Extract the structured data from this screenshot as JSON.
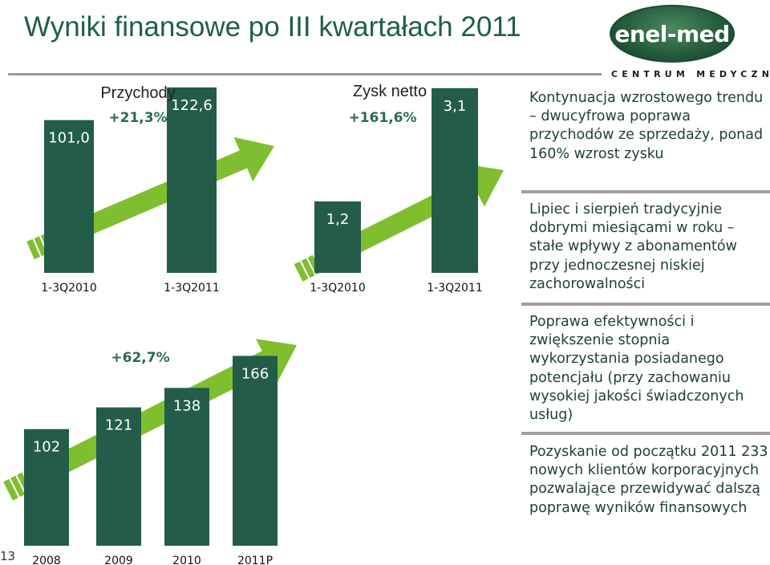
{
  "title": "Wyniki finansowe po III kwartałach 2011",
  "logo": {
    "name": "enel-med",
    "subtitle": "CENTRUM MEDYCZNE"
  },
  "colors": {
    "bar": "#245c4a",
    "arrow": "#7fbf2f",
    "accent": "#1e5e4a"
  },
  "page_number": "13",
  "bullets": [
    "Kontynuacja wzrostowego trendu – dwucyfrowa poprawa przychodów ze sprzedaży, ponad 160% wzrost zysku",
    "Lipiec i sierpień tradycyjnie dobrymi miesiącami w roku – stałe wpływy z abonamentów przy jednoczesnej niskiej zachorowalności",
    "Poprawa efektywności i zwiększenie stopnia wykorzystania posiadanego potencjału (przy zachowaniu wysokiej jakości świadczonych usług)",
    "Pozyskanie od początku 2011 233 nowych klientów korporacyjnych pozwalające przewidywać dalszą poprawę wyników finansowych"
  ],
  "chart_data": [
    {
      "type": "bar",
      "title": "Przychody",
      "growth_label": "+21,3%",
      "categories": [
        "1-3Q2010",
        "1-3Q2011"
      ],
      "values": [
        101.0,
        122.6
      ],
      "value_labels": [
        "101,0",
        "122,6"
      ],
      "ylim": [
        0,
        130
      ]
    },
    {
      "type": "bar",
      "title": "Zysk netto",
      "growth_label": "+161,6%",
      "categories": [
        "1-3Q2010",
        "1-3Q2011"
      ],
      "values": [
        1.2,
        3.1
      ],
      "value_labels": [
        "1,2",
        "3,1"
      ],
      "ylim": [
        0,
        3.3
      ]
    },
    {
      "type": "bar",
      "title": "",
      "growth_label": "+62,7%",
      "categories": [
        "2008",
        "2009",
        "2010",
        "2011P"
      ],
      "values": [
        102,
        121,
        138,
        166
      ],
      "value_labels": [
        "102",
        "121",
        "138",
        "166"
      ],
      "ylim": [
        0,
        240
      ]
    }
  ]
}
